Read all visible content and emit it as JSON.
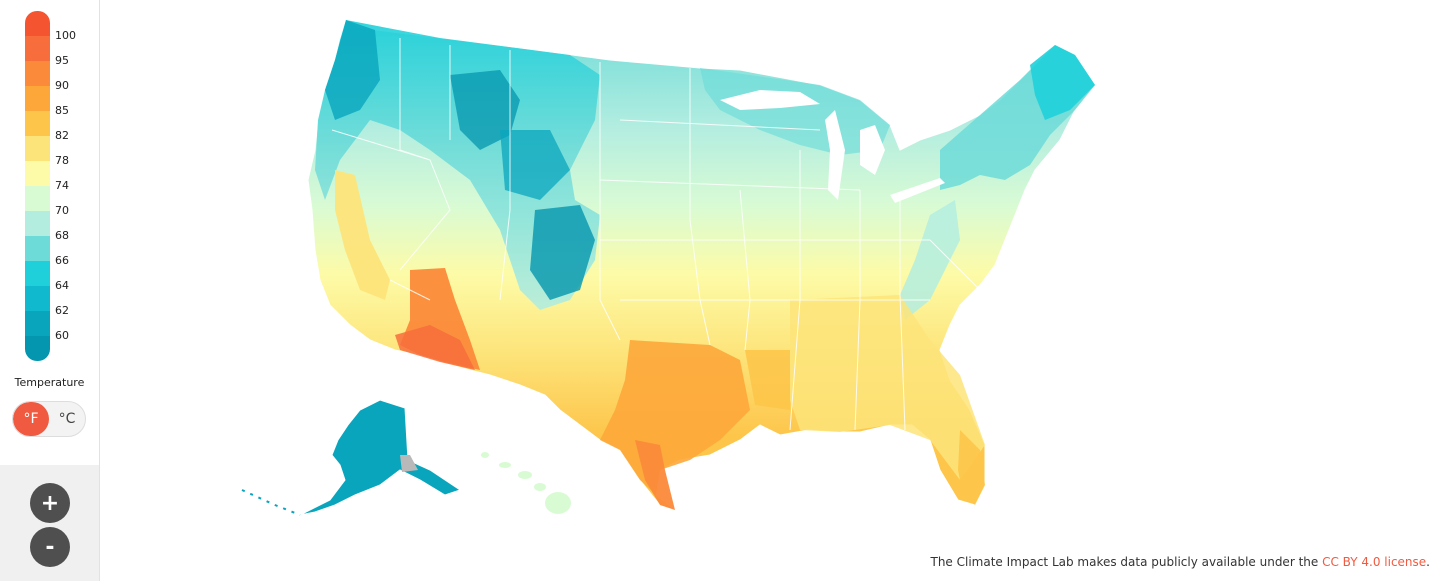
{
  "legend": {
    "title": "Temperature",
    "ticks": [
      "100",
      "95",
      "90",
      "85",
      "82",
      "78",
      "74",
      "70",
      "68",
      "66",
      "64",
      "62",
      "60"
    ],
    "colors": [
      "#f4542f",
      "#f76d3c",
      "#fb8a3a",
      "#fda73a",
      "#fdc54a",
      "#fde47a",
      "#fdfba7",
      "#d9fbd4",
      "#b3ede0",
      "#6ddbd8",
      "#1fd0da",
      "#10b9cd",
      "#09a5bd",
      "#0496ae"
    ]
  },
  "units": {
    "fahrenheit": "°F",
    "celsius": "°C",
    "selected": "°F"
  },
  "zoom": {
    "in": "+",
    "out": "-"
  },
  "footer": {
    "text": "The Climate Impact Lab makes data publicly available under the ",
    "link": "CC BY 4.0 license",
    "end": "."
  }
}
